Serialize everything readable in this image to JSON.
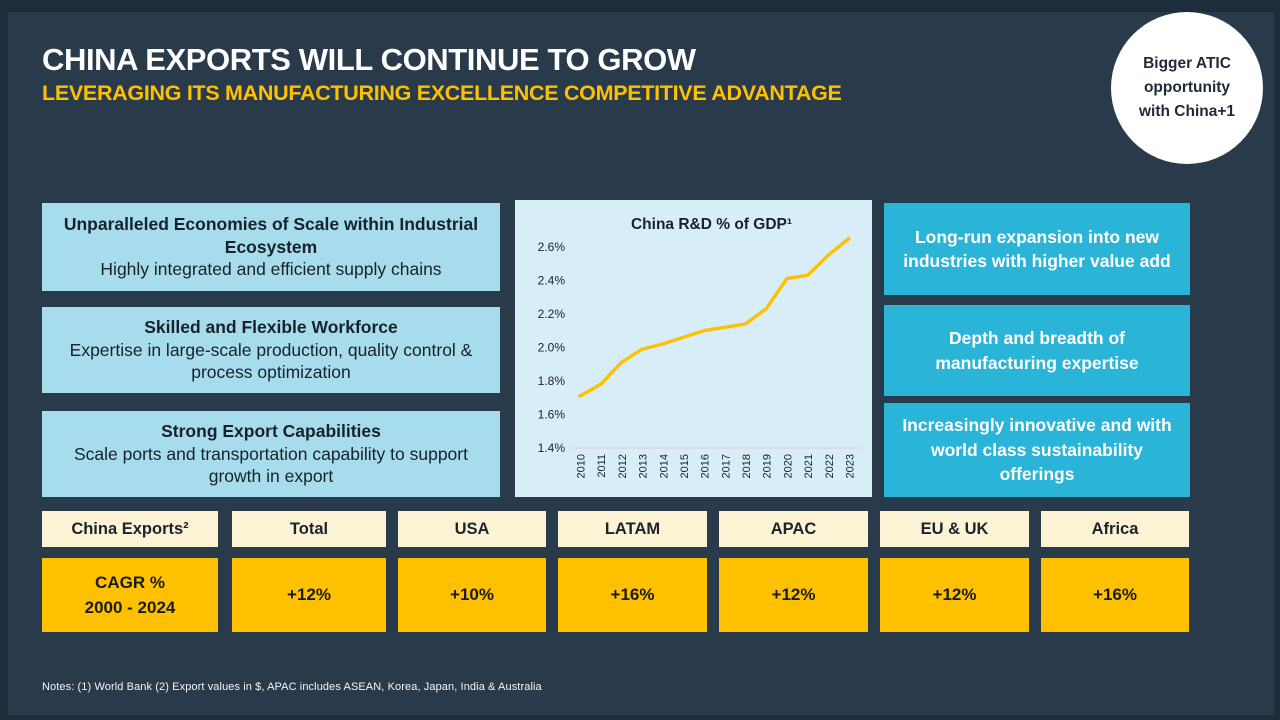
{
  "slide": {
    "title": "CHINA EXPORTS WILL CONTINUE TO GROW",
    "subtitle": "LEVERAGING ITS MANUFACTURING EXCELLENCE COMPETITIVE ADVANTAGE",
    "badge": "Bigger ATIC opportunity with China+1",
    "notes": "Notes: (1) World Bank (2) Export values in $, APAC includes ASEAN, Korea, Japan, India & Australia"
  },
  "left_boxes": [
    {
      "title": "Unparalleled Economies of Scale within Industrial Ecosystem",
      "body": "Highly integrated and efficient supply chains"
    },
    {
      "title": "Skilled and Flexible Workforce",
      "body": "Expertise in large-scale production, quality control & process optimization"
    },
    {
      "title": "Strong Export Capabilities",
      "body": "Scale ports and transportation capability to support growth in export"
    }
  ],
  "right_boxes": [
    {
      "text": "Long-run expansion into new industries with higher value add"
    },
    {
      "text": "Depth and breadth of manufacturing expertise"
    },
    {
      "text": "Increasingly innovative and with world class sustainability offerings"
    }
  ],
  "chart_data": {
    "type": "line",
    "title": "China R&D % of GDP¹",
    "x": [
      "2010",
      "2011",
      "2012",
      "2013",
      "2014",
      "2015",
      "2016",
      "2017",
      "2018",
      "2019",
      "2020",
      "2021",
      "2022",
      "2023"
    ],
    "series": [
      {
        "name": "China R&D % of GDP",
        "values": [
          1.71,
          1.78,
          1.91,
          1.99,
          2.02,
          2.06,
          2.1,
          2.12,
          2.14,
          2.23,
          2.41,
          2.43,
          2.55,
          2.65
        ]
      }
    ],
    "ylim": [
      1.4,
      2.7
    ],
    "yticks": [
      1.4,
      1.6,
      1.8,
      2.0,
      2.2,
      2.4,
      2.6
    ],
    "ytick_labels": [
      "1.4%",
      "1.6%",
      "1.8%",
      "2.0%",
      "2.2%",
      "2.4%",
      "2.6%"
    ],
    "grid": false,
    "legend_position": "none",
    "line_color": "#FFC000",
    "axis_color": "#D9CDCB",
    "panel_background": "#D7EEF8"
  },
  "table": {
    "columns": [
      {
        "header": "China Exports²",
        "value": "CAGR %\n2000 - 2024"
      },
      {
        "header": "Total",
        "value": "+12%"
      },
      {
        "header": "USA",
        "value": "+10%"
      },
      {
        "header": "LATAM",
        "value": "+16%"
      },
      {
        "header": "APAC",
        "value": "+12%"
      },
      {
        "header": "EU & UK",
        "value": "+12%"
      },
      {
        "header": "Africa",
        "value": "+16%"
      }
    ]
  },
  "colors": {
    "background": "#293A4B",
    "frame": "#1E2D3C",
    "title": "#FFFFFF",
    "accent_gold": "#FFC000",
    "light_blue_box": "#A7DCEC",
    "teal_box": "#29B4D8",
    "cream_header": "#FCF3D5",
    "chart_background": "#D7EEF8"
  }
}
